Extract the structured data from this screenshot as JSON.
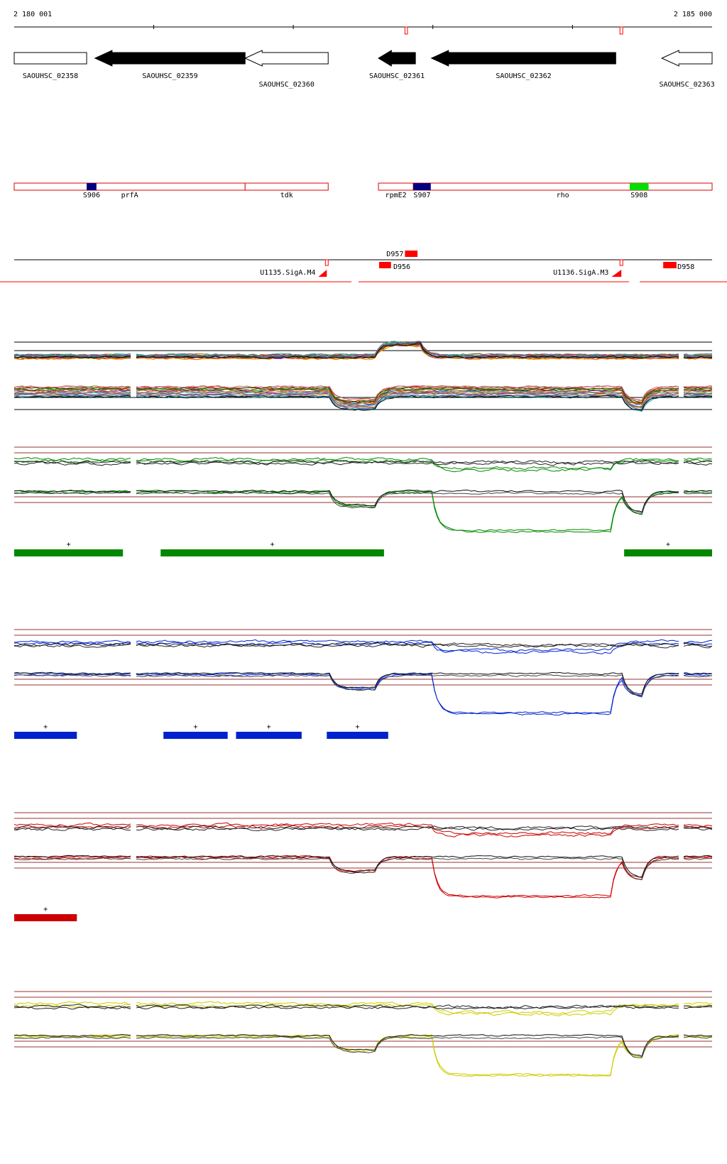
{
  "ruler": {
    "start_label": "2 180 001",
    "end_label": "2 185 000",
    "start_coord": 2180001,
    "end_coord": 2185000
  },
  "genes": [
    {
      "id": "SAOUHSC_02358",
      "strand": "+",
      "filled": false,
      "start": 2180001,
      "end": 2180520
    },
    {
      "id": "SAOUHSC_02359",
      "strand": "-",
      "filled": true,
      "start": 2180580,
      "end": 2181655
    },
    {
      "id": "SAOUHSC_02360",
      "strand": "-",
      "filled": false,
      "start": 2181655,
      "end": 2182250
    },
    {
      "id": "SAOUHSC_02361",
      "strand": "-",
      "filled": true,
      "start": 2182610,
      "end": 2182875
    },
    {
      "id": "SAOUHSC_02362",
      "strand": "-",
      "filled": true,
      "start": 2182990,
      "end": 2184310
    },
    {
      "id": "SAOUHSC_02363",
      "strand": "-",
      "filled": false,
      "start": 2184640,
      "end": 2185000
    }
  ],
  "operon_track": {
    "segments": [
      {
        "label": "prfA",
        "start": 2180001,
        "end": 2181655
      },
      {
        "label": "tdk",
        "start": 2181655,
        "end": 2182250
      },
      {
        "label": "rpmE2",
        "start": 2182610,
        "end": 2182860
      },
      {
        "label": "rho",
        "start": 2182860,
        "end": 2185000
      }
    ],
    "sites": [
      {
        "label": "S906",
        "color": "#000080",
        "start": 2180520,
        "end": 2180590
      },
      {
        "label": "S907",
        "color": "#000080",
        "start": 2182860,
        "end": 2182985
      },
      {
        "label": "S908",
        "color": "#00dd00",
        "start": 2184410,
        "end": 2184545
      }
    ]
  },
  "features": [
    {
      "label": "D957",
      "strand": "+",
      "start": 2182800,
      "end": 2182890
    },
    {
      "label": "D956",
      "strand": "-",
      "start": 2182615,
      "end": 2182700
    },
    {
      "label": "U1135.SigA.M4",
      "strand": "-",
      "start": 2182180,
      "end": 2182240
    },
    {
      "label": "U1136.SigA.M3",
      "strand": "-",
      "start": 2184280,
      "end": 2184350
    },
    {
      "label": "D958",
      "strand": "-",
      "start": 2184650,
      "end": 2184745
    }
  ],
  "segments_green": [
    {
      "strand": "+",
      "start": 2180001,
      "end": 2180780
    },
    {
      "strand": "+",
      "start": 2181050,
      "end": 2182650
    },
    {
      "strand": "+",
      "start": 2184370,
      "end": 2185000
    }
  ],
  "segments_blue": [
    {
      "strand": "+",
      "start": 2180001,
      "end": 2180450
    },
    {
      "strand": "+",
      "start": 2181070,
      "end": 2181530
    },
    {
      "strand": "+",
      "start": 2181590,
      "end": 2182060
    },
    {
      "strand": "+",
      "start": 2182240,
      "end": 2182680
    }
  ],
  "segments_red": [
    {
      "strand": "+",
      "start": 2180001,
      "end": 2180450
    }
  ],
  "colors": {
    "gene_fill": "#000000",
    "operon_outline": "#dd0000",
    "feature": "#ff0000",
    "green": "#008800",
    "blue": "#0022cc",
    "red": "#cc0000",
    "yellow": "#cccc00",
    "reference_line": "#993333"
  }
}
